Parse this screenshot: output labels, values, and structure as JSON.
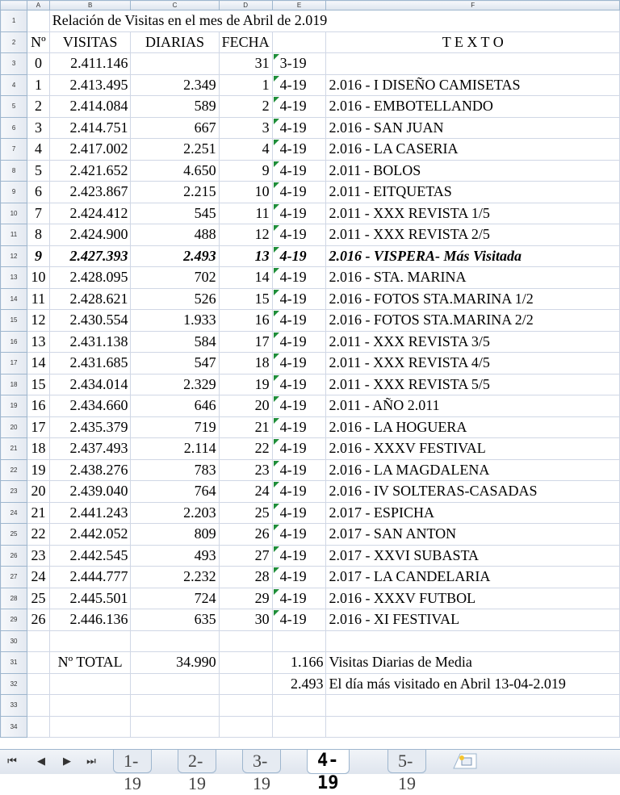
{
  "columns": [
    "A",
    "B",
    "C",
    "D",
    "E",
    "F"
  ],
  "rows": [
    {
      "n": "1",
      "title": "Relación de Visitas en el mes de Abril de 2.019"
    },
    {
      "n": "2",
      "a": "Nº",
      "b": "VISITAS",
      "c": "DIARIAS",
      "d": "FECHA",
      "e": "",
      "f": "T E X T O"
    },
    {
      "n": "3",
      "a": "0",
      "b": "2.411.146",
      "c": "",
      "d": "31",
      "e": "3-19",
      "f": ""
    },
    {
      "n": "4",
      "a": "1",
      "b": "2.413.495",
      "c": "2.349",
      "d": "1",
      "e": "4-19",
      "f": "2.016 - I DISEÑO CAMISETAS"
    },
    {
      "n": "5",
      "a": "2",
      "b": "2.414.084",
      "c": "589",
      "d": "2",
      "e": "4-19",
      "f": "2.016 - EMBOTELLANDO"
    },
    {
      "n": "6",
      "a": "3",
      "b": "2.414.751",
      "c": "667",
      "d": "3",
      "e": "4-19",
      "f": "2.016 - SAN JUAN"
    },
    {
      "n": "7",
      "a": "4",
      "b": "2.417.002",
      "c": "2.251",
      "d": "4",
      "e": "4-19",
      "f": "2.016 - LA CASERIA"
    },
    {
      "n": "8",
      "a": "5",
      "b": "2.421.652",
      "c": "4.650",
      "d": "9",
      "e": "4-19",
      "f": "2.011 - BOLOS"
    },
    {
      "n": "9",
      "a": "6",
      "b": "2.423.867",
      "c": "2.215",
      "d": "10",
      "e": "4-19",
      "f": "2.011 - EITQUETAS"
    },
    {
      "n": "10",
      "a": "7",
      "b": "2.424.412",
      "c": "545",
      "d": "11",
      "e": "4-19",
      "f": "2.011 - XXX REVISTA 1/5"
    },
    {
      "n": "11",
      "a": "8",
      "b": "2.424.900",
      "c": "488",
      "d": "12",
      "e": "4-19",
      "f": "2.011 - XXX REVISTA 2/5"
    },
    {
      "n": "12",
      "a": "9",
      "b": "2.427.393",
      "c": "2.493",
      "d": "13",
      "e": "4-19",
      "f": "2.016 - VISPERA- Más Visitada",
      "bold": true
    },
    {
      "n": "13",
      "a": "10",
      "b": "2.428.095",
      "c": "702",
      "d": "14",
      "e": "4-19",
      "f": "2.016 - STA. MARINA"
    },
    {
      "n": "14",
      "a": "11",
      "b": "2.428.621",
      "c": "526",
      "d": "15",
      "e": "4-19",
      "f": "2.016 - FOTOS STA.MARINA 1/2"
    },
    {
      "n": "15",
      "a": "12",
      "b": "2.430.554",
      "c": "1.933",
      "d": "16",
      "e": "4-19",
      "f": "2.016 - FOTOS STA.MARINA 2/2"
    },
    {
      "n": "16",
      "a": "13",
      "b": "2.431.138",
      "c": "584",
      "d": "17",
      "e": "4-19",
      "f": "2.011 - XXX REVISTA 3/5"
    },
    {
      "n": "17",
      "a": "14",
      "b": "2.431.685",
      "c": "547",
      "d": "18",
      "e": "4-19",
      "f": "2.011 - XXX REVISTA 4/5"
    },
    {
      "n": "18",
      "a": "15",
      "b": "2.434.014",
      "c": "2.329",
      "d": "19",
      "e": "4-19",
      "f": "2.011 - XXX REVISTA 5/5"
    },
    {
      "n": "19",
      "a": "16",
      "b": "2.434.660",
      "c": "646",
      "d": "20",
      "e": "4-19",
      "f": "2.011 - AÑO 2.011"
    },
    {
      "n": "20",
      "a": "17",
      "b": "2.435.379",
      "c": "719",
      "d": "21",
      "e": "4-19",
      "f": "2.016 - LA HOGUERA"
    },
    {
      "n": "21",
      "a": "18",
      "b": "2.437.493",
      "c": "2.114",
      "d": "22",
      "e": "4-19",
      "f": "2.016 - XXXV FESTIVAL"
    },
    {
      "n": "22",
      "a": "19",
      "b": "2.438.276",
      "c": "783",
      "d": "23",
      "e": "4-19",
      "f": "2.016 - LA MAGDALENA"
    },
    {
      "n": "23",
      "a": "20",
      "b": "2.439.040",
      "c": "764",
      "d": "24",
      "e": "4-19",
      "f": "2.016 - IV SOLTERAS-CASADAS"
    },
    {
      "n": "24",
      "a": "21",
      "b": "2.441.243",
      "c": "2.203",
      "d": "25",
      "e": "4-19",
      "f": "2.017 - ESPICHA"
    },
    {
      "n": "25",
      "a": "22",
      "b": "2.442.052",
      "c": "809",
      "d": "26",
      "e": "4-19",
      "f": "2.017 - SAN ANTON"
    },
    {
      "n": "26",
      "a": "23",
      "b": "2.442.545",
      "c": "493",
      "d": "27",
      "e": "4-19",
      "f": "2.017 - XXVI SUBASTA"
    },
    {
      "n": "27",
      "a": "24",
      "b": "2.444.777",
      "c": "2.232",
      "d": "28",
      "e": "4-19",
      "f": "2.017 - LA CANDELARIA"
    },
    {
      "n": "28",
      "a": "25",
      "b": "2.445.501",
      "c": "724",
      "d": "29",
      "e": "4-19",
      "f": "2.016 - XXXV FUTBOL"
    },
    {
      "n": "29",
      "a": "26",
      "b": "2.446.136",
      "c": "635",
      "d": "30",
      "e": "4-19",
      "f": "2.016 - XI FESTIVAL"
    },
    {
      "n": "30",
      "a": "",
      "b": "",
      "c": "",
      "d": "",
      "e": "",
      "f": ""
    },
    {
      "n": "31",
      "a": "",
      "b": "Nº TOTAL",
      "c": "34.990",
      "d": "",
      "e": "1.166",
      "f": "Visitas Diarias de Media"
    },
    {
      "n": "32",
      "a": "",
      "b": "",
      "c": "",
      "d": "",
      "e": "2.493",
      "f": "El día más visitado en Abril 13-04-2.019"
    },
    {
      "n": "33",
      "a": "",
      "b": "",
      "c": "",
      "d": "",
      "e": "",
      "f": ""
    },
    {
      "n": "34",
      "a": "",
      "b": "",
      "c": "",
      "d": "",
      "e": "",
      "f": ""
    }
  ],
  "tabs": [
    {
      "label": "1-19",
      "active": false
    },
    {
      "label": "2-19",
      "active": false
    },
    {
      "label": "3-19",
      "active": false
    },
    {
      "label": "4-19",
      "active": true
    },
    {
      "label": "5-19",
      "active": false
    }
  ],
  "nav": {
    "first": "⏮",
    "prev": "◀",
    "next": "▶",
    "last": "⏭"
  },
  "colors": {
    "date_marker": "#1f8e3a"
  }
}
